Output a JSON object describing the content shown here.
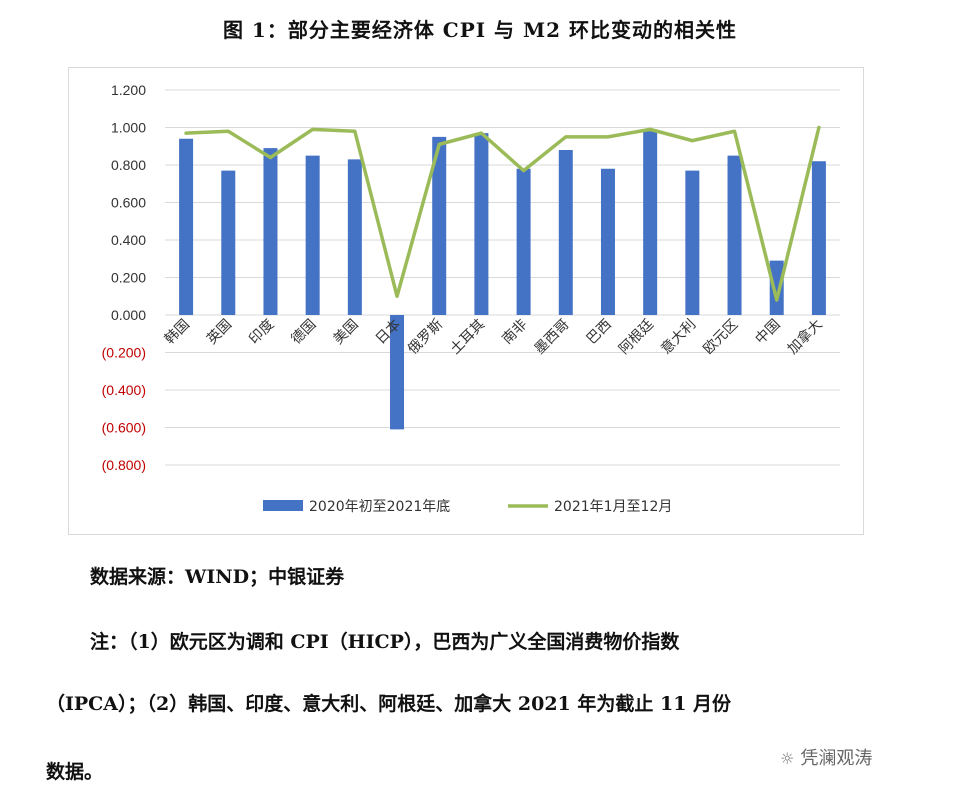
{
  "title": "图 1：部分主要经济体 CPI 与 M2 环比变动的相关性",
  "chart_data": {
    "type": "bar",
    "categories": [
      "韩国",
      "英国",
      "印度",
      "德国",
      "美国",
      "日本",
      "俄罗斯",
      "土耳其",
      "南非",
      "墨西哥",
      "巴西",
      "阿根廷",
      "意大利",
      "欧元区",
      "中国",
      "加拿大"
    ],
    "series": [
      {
        "name": "2020年初至2021年底",
        "type": "bar",
        "color": "#4472C4",
        "values": [
          0.94,
          0.77,
          0.89,
          0.85,
          0.83,
          -0.61,
          0.95,
          0.97,
          0.78,
          0.88,
          0.78,
          0.98,
          0.77,
          0.85,
          0.29,
          0.82
        ]
      },
      {
        "name": "2021年1月至12月",
        "type": "line",
        "color": "#9BBB59",
        "values": [
          0.97,
          0.98,
          0.84,
          0.99,
          0.98,
          0.1,
          0.91,
          0.97,
          0.77,
          0.95,
          0.95,
          0.99,
          0.93,
          0.98,
          0.08,
          1.0
        ]
      }
    ],
    "ylim": [
      -0.8,
      1.2
    ],
    "yticks": [
      {
        "value": 1.2,
        "label": "1.200"
      },
      {
        "value": 1.0,
        "label": "1.000"
      },
      {
        "value": 0.8,
        "label": "0.800"
      },
      {
        "value": 0.6,
        "label": "0.600"
      },
      {
        "value": 0.4,
        "label": "0.400"
      },
      {
        "value": 0.2,
        "label": "0.200"
      },
      {
        "value": 0.0,
        "label": "0.000"
      },
      {
        "value": -0.2,
        "label": "(0.200)"
      },
      {
        "value": -0.4,
        "label": "(0.400)"
      },
      {
        "value": -0.6,
        "label": "(0.600)"
      },
      {
        "value": -0.8,
        "label": "(0.800)"
      }
    ],
    "negative_label_color": "#C00000",
    "grid": true,
    "legend_position": "bottom"
  },
  "source": "数据来源：WIND；中银证券",
  "notes": [
    "注：（1）欧元区为调和 CPI（HICP），巴西为广义全国消费物价指数",
    "（IPCA）；（2）韩国、印度、意大利、阿根廷、加拿大 2021 年为截止 11 月份",
    "数据。"
  ],
  "watermark": "凭澜观涛"
}
